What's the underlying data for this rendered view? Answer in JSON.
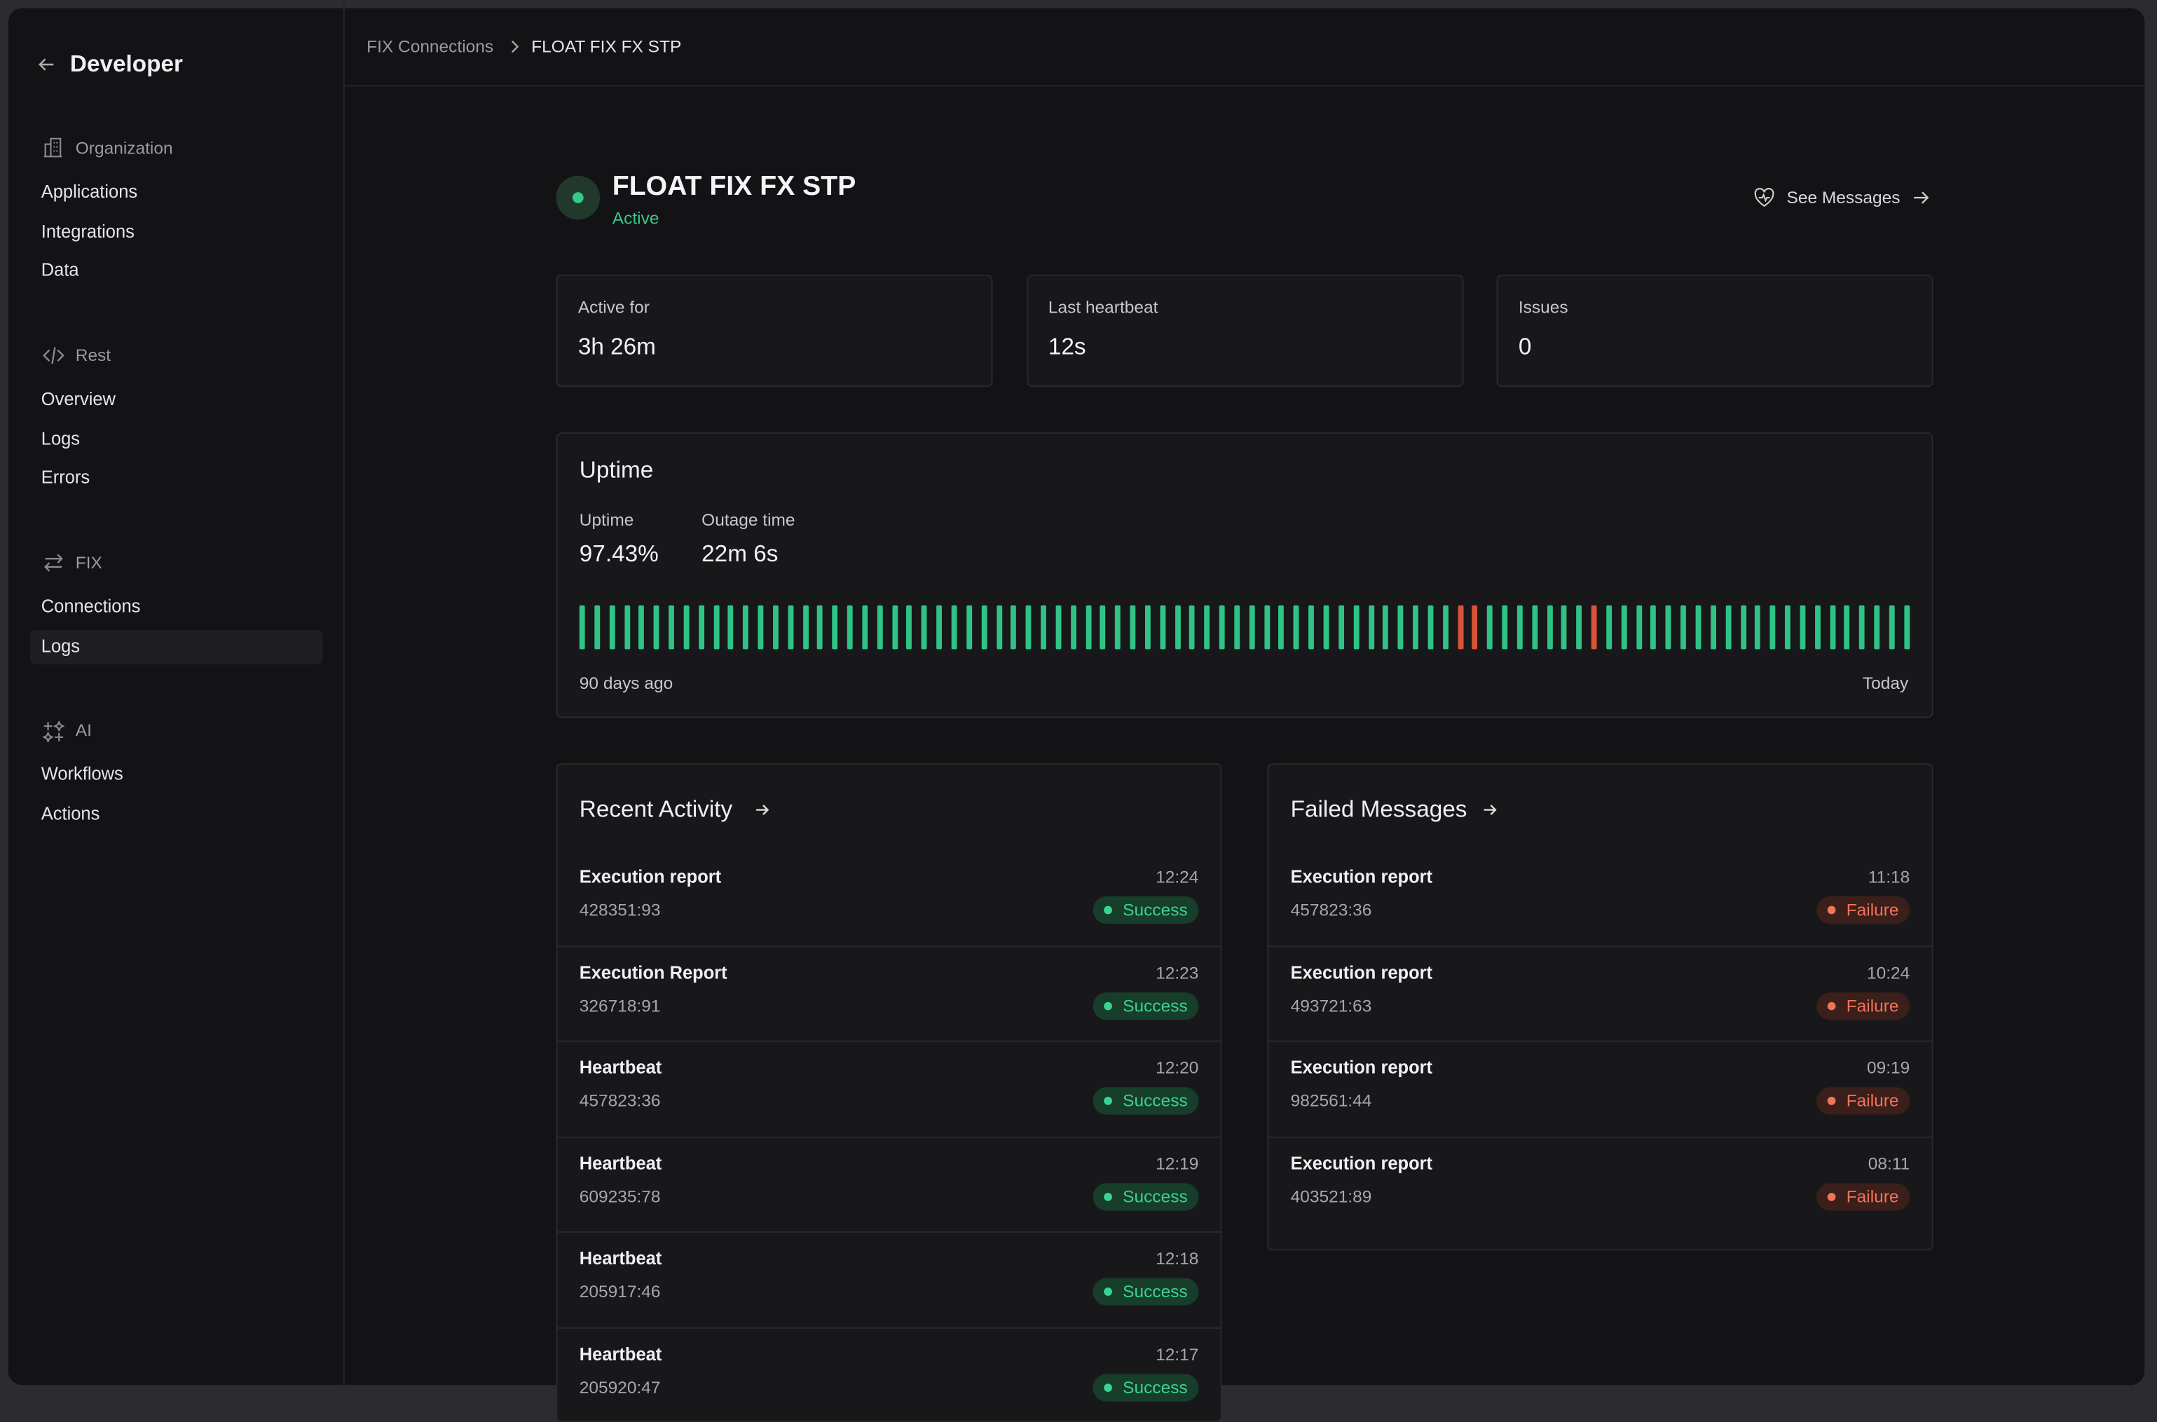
{
  "sidebar": {
    "back": "Developer",
    "sections": [
      {
        "title": "Organization",
        "items": [
          "Applications",
          "Integrations",
          "Data"
        ]
      },
      {
        "title": "Rest",
        "items": [
          "Overview",
          "Logs",
          "Errors"
        ]
      },
      {
        "title": "FIX",
        "items": [
          "Connections",
          "Logs"
        ]
      },
      {
        "title": "AI",
        "items": [
          "Workflows",
          "Actions"
        ]
      }
    ]
  },
  "breadcrumb": [
    "FIX Connections",
    "FLOAT FIX FX STP"
  ],
  "header": {
    "title": "FLOAT FIX FX STP",
    "status": "Active",
    "action": "See Messages"
  },
  "stats": [
    {
      "label": "Active for",
      "value": "3h 26m"
    },
    {
      "label": "Last heartbeat",
      "value": "12s"
    },
    {
      "label": "Issues",
      "value": "0"
    }
  ],
  "uptime": {
    "title": "Uptime",
    "metrics": [
      {
        "label": "Uptime",
        "value": "97.43%"
      },
      {
        "label": "Outage time",
        "value": "22m 6s"
      }
    ],
    "start": "90 days ago",
    "end": "Today"
  },
  "recent_activity": {
    "title": "Recent Activity",
    "rows": [
      {
        "name": "Execution report",
        "id": "428351:93",
        "time": "12:24",
        "status": "Success"
      },
      {
        "name": "Execution Report",
        "id": "326718:91",
        "time": "12:23",
        "status": "Success"
      },
      {
        "name": "Heartbeat",
        "id": "457823:36",
        "time": "12:20",
        "status": "Success"
      },
      {
        "name": "Heartbeat",
        "id": "609235:78",
        "time": "12:19",
        "status": "Success"
      },
      {
        "name": "Heartbeat",
        "id": "205917:46",
        "time": "12:18",
        "status": "Success"
      },
      {
        "name": "Heartbeat",
        "id": "205920:47",
        "time": "12:17",
        "status": "Success"
      }
    ]
  },
  "failed_messages": {
    "title": "Failed Messages",
    "rows": [
      {
        "name": "Execution report",
        "id": "457823:36",
        "time": "11:18",
        "status": "Failure"
      },
      {
        "name": "Execution report",
        "id": "493721:63",
        "time": "10:24",
        "status": "Failure"
      },
      {
        "name": "Execution report",
        "id": "982561:44",
        "time": "09:19",
        "status": "Failure"
      },
      {
        "name": "Execution report",
        "id": "403521:89",
        "time": "08:11",
        "status": "Failure"
      }
    ]
  }
}
